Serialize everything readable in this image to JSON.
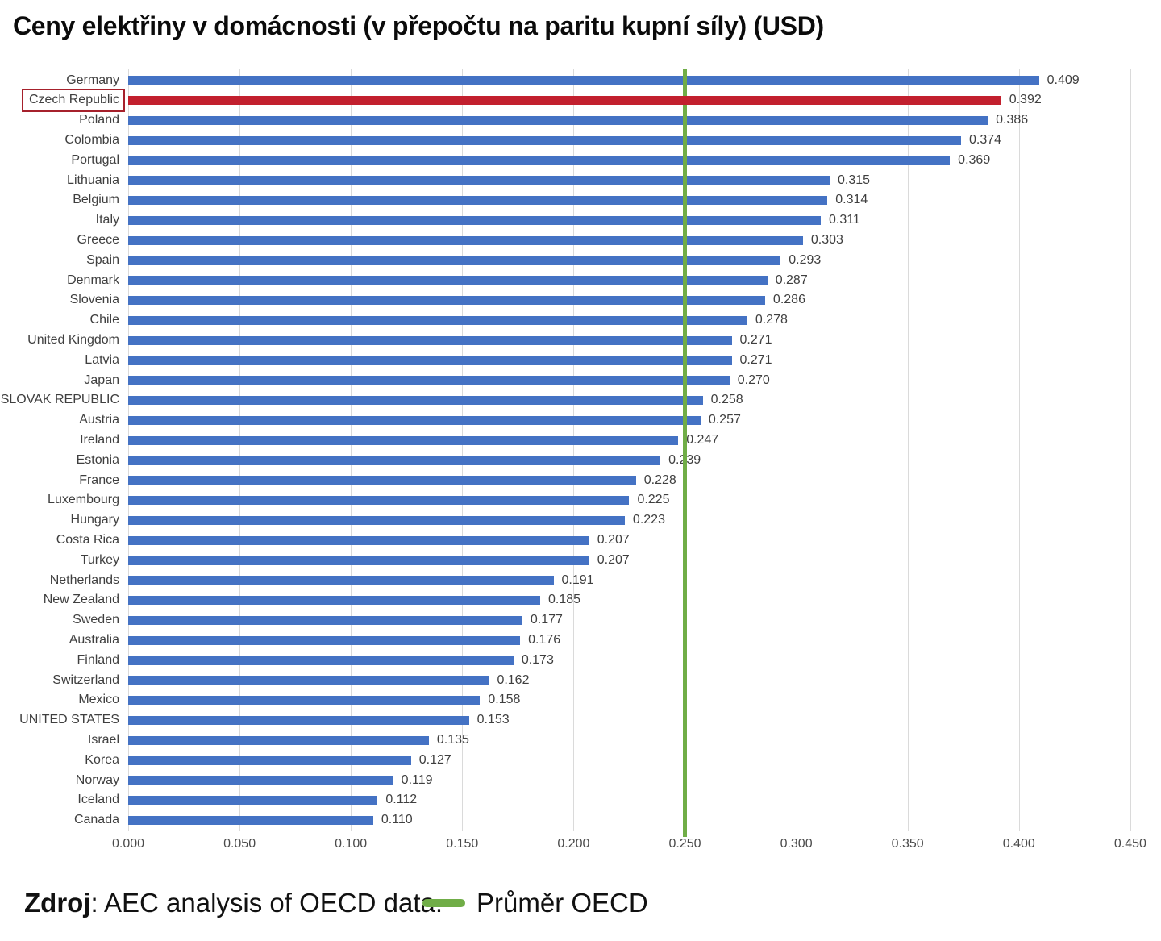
{
  "title": "Ceny elektřiny v domácnosti (v přepočtu na paritu kupní síly) (USD)",
  "footer": {
    "source_label": "Zdroj",
    "source_text": ": AEC analysis of OECD data.",
    "legend_label": "Průměr OECD"
  },
  "colors": {
    "bar": "#4472C4",
    "highlight_bar": "#C2202E",
    "average_line": "#70AD47",
    "highlight_box_border": "#A6212C",
    "gridline": "#DADADA"
  },
  "chart_data": {
    "type": "bar",
    "orientation": "horizontal",
    "title": "Ceny elektřiny v domácnosti (v přepočtu na paritu kupní síly) (USD)",
    "xlabel": "",
    "ylabel": "",
    "xlim": [
      0.0,
      0.45
    ],
    "grid": "vertical",
    "x_ticks": [
      "0.000",
      "0.050",
      "0.100",
      "0.150",
      "0.200",
      "0.250",
      "0.300",
      "0.350",
      "0.400",
      "0.450"
    ],
    "average_line": {
      "value": 0.25,
      "label": "Průměr OECD"
    },
    "highlighted_category": "Czech Republic",
    "countries": [
      {
        "name": "Germany",
        "value": 0.409,
        "label": "0.409",
        "highlight": false
      },
      {
        "name": "Czech Republic",
        "value": 0.392,
        "label": "0.392",
        "highlight": true
      },
      {
        "name": "Poland",
        "value": 0.386,
        "label": "0.386",
        "highlight": false
      },
      {
        "name": "Colombia",
        "value": 0.374,
        "label": "0.374",
        "highlight": false
      },
      {
        "name": "Portugal",
        "value": 0.369,
        "label": "0.369",
        "highlight": false
      },
      {
        "name": "Lithuania",
        "value": 0.315,
        "label": "0.315",
        "highlight": false
      },
      {
        "name": "Belgium",
        "value": 0.314,
        "label": "0.314",
        "highlight": false
      },
      {
        "name": "Italy",
        "value": 0.311,
        "label": "0.311",
        "highlight": false
      },
      {
        "name": "Greece",
        "value": 0.303,
        "label": "0.303",
        "highlight": false
      },
      {
        "name": "Spain",
        "value": 0.293,
        "label": "0.293",
        "highlight": false
      },
      {
        "name": "Denmark",
        "value": 0.287,
        "label": "0.287",
        "highlight": false
      },
      {
        "name": "Slovenia",
        "value": 0.286,
        "label": "0.286",
        "highlight": false
      },
      {
        "name": "Chile",
        "value": 0.278,
        "label": "0.278",
        "highlight": false
      },
      {
        "name": "United Kingdom",
        "value": 0.271,
        "label": "0.271",
        "highlight": false
      },
      {
        "name": "Latvia",
        "value": 0.271,
        "label": "0.271",
        "highlight": false
      },
      {
        "name": "Japan",
        "value": 0.27,
        "label": "0.270",
        "highlight": false
      },
      {
        "name": "SLOVAK REPUBLIC",
        "value": 0.258,
        "label": "0.258",
        "highlight": false
      },
      {
        "name": "Austria",
        "value": 0.257,
        "label": "0.257",
        "highlight": false
      },
      {
        "name": "Ireland",
        "value": 0.247,
        "label": "0.247",
        "highlight": false
      },
      {
        "name": "Estonia",
        "value": 0.239,
        "label": "0.239",
        "highlight": false
      },
      {
        "name": "France",
        "value": 0.228,
        "label": "0.228",
        "highlight": false
      },
      {
        "name": "Luxembourg",
        "value": 0.225,
        "label": "0.225",
        "highlight": false
      },
      {
        "name": "Hungary",
        "value": 0.223,
        "label": "0.223",
        "highlight": false
      },
      {
        "name": "Costa Rica",
        "value": 0.207,
        "label": "0.207",
        "highlight": false
      },
      {
        "name": "Turkey",
        "value": 0.207,
        "label": "0.207",
        "highlight": false
      },
      {
        "name": "Netherlands",
        "value": 0.191,
        "label": "0.191",
        "highlight": false
      },
      {
        "name": "New Zealand",
        "value": 0.185,
        "label": "0.185",
        "highlight": false
      },
      {
        "name": "Sweden",
        "value": 0.177,
        "label": "0.177",
        "highlight": false
      },
      {
        "name": "Australia",
        "value": 0.176,
        "label": "0.176",
        "highlight": false
      },
      {
        "name": "Finland",
        "value": 0.173,
        "label": "0.173",
        "highlight": false
      },
      {
        "name": "Switzerland",
        "value": 0.162,
        "label": "0.162",
        "highlight": false
      },
      {
        "name": "Mexico",
        "value": 0.158,
        "label": "0.158",
        "highlight": false
      },
      {
        "name": "UNITED STATES",
        "value": 0.153,
        "label": "0.153",
        "highlight": false
      },
      {
        "name": "Israel",
        "value": 0.135,
        "label": "0.135",
        "highlight": false
      },
      {
        "name": "Korea",
        "value": 0.127,
        "label": "0.127",
        "highlight": false
      },
      {
        "name": "Norway",
        "value": 0.119,
        "label": "0.119",
        "highlight": false
      },
      {
        "name": "Iceland",
        "value": 0.112,
        "label": "0.112",
        "highlight": false
      },
      {
        "name": "Canada",
        "value": 0.11,
        "label": "0.110",
        "highlight": false
      }
    ]
  }
}
